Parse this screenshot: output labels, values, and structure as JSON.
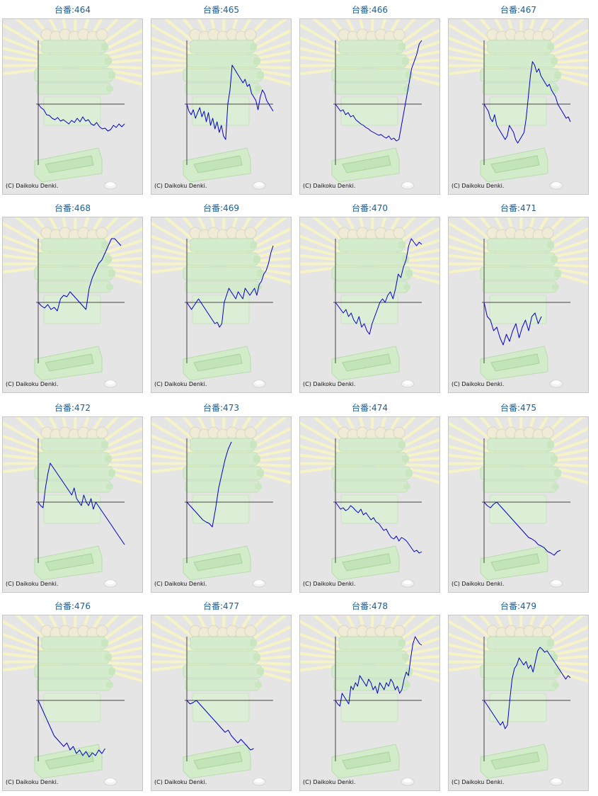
{
  "credit": "(C) Daikoku Denki.",
  "colors": {
    "title": "#1a5d9a",
    "line": "#0000cc",
    "axis": "#444444",
    "background": "#e5e5e5"
  },
  "chart_data": [
    {
      "type": "line",
      "title": "台番:464",
      "y": [
        0,
        -5,
        -8,
        -15,
        -16,
        -20,
        -22,
        -19,
        -24,
        -22,
        -25,
        -28,
        -23,
        -26,
        -20,
        -25,
        -18,
        -24,
        -22,
        -28,
        -30,
        -26,
        -32,
        -35,
        -34,
        -38,
        -36,
        -30,
        -33,
        -28,
        -32,
        -28
      ]
    },
    {
      "type": "line",
      "title": "台番:465",
      "y": [
        0,
        -10,
        -15,
        -8,
        -20,
        -12,
        -5,
        -18,
        -10,
        -25,
        -12,
        -30,
        -20,
        -35,
        -25,
        -40,
        -30,
        -45,
        -50,
        0,
        20,
        55,
        50,
        45,
        40,
        35,
        30,
        35,
        25,
        28,
        15,
        10,
        5,
        -8,
        10,
        20,
        15,
        5,
        0,
        -5,
        -10
      ]
    },
    {
      "type": "line",
      "title": "台番:466",
      "y": [
        0,
        -5,
        -10,
        -8,
        -15,
        -12,
        -18,
        -16,
        -22,
        -25,
        -28,
        -30,
        -33,
        -35,
        -38,
        -40,
        -42,
        -44,
        -43,
        -46,
        -48,
        -45,
        -50,
        -48,
        -52,
        -50,
        -30,
        -10,
        10,
        30,
        50,
        60,
        70,
        85,
        90
      ]
    },
    {
      "type": "line",
      "title": "台番:467",
      "y": [
        0,
        -5,
        -10,
        -20,
        -25,
        -15,
        -30,
        -35,
        -40,
        -45,
        -50,
        -45,
        -30,
        -35,
        -40,
        -50,
        -55,
        -50,
        -45,
        -40,
        -20,
        10,
        40,
        60,
        55,
        45,
        50,
        40,
        35,
        30,
        25,
        28,
        20,
        15,
        10,
        0,
        -5,
        -10,
        -15,
        -20,
        -18,
        -25
      ]
    },
    {
      "type": "line",
      "title": "台番:468",
      "y": [
        0,
        -5,
        -8,
        -3,
        -10,
        -7,
        -12,
        5,
        10,
        8,
        15,
        10,
        5,
        0,
        -5,
        -10,
        20,
        35,
        45,
        55,
        60,
        70,
        80,
        90,
        95,
        85,
        80
      ]
    },
    {
      "type": "line",
      "title": "台番:469",
      "y": [
        0,
        -5,
        -10,
        -5,
        0,
        5,
        0,
        -5,
        -10,
        -15,
        -20,
        -25,
        -30,
        -28,
        -35,
        -30,
        0,
        10,
        20,
        15,
        10,
        5,
        15,
        10,
        5,
        20,
        15,
        10,
        15,
        20,
        10,
        25,
        30,
        40,
        45,
        55,
        70,
        80
      ]
    },
    {
      "type": "line",
      "title": "台番:470",
      "y": [
        0,
        -5,
        -10,
        -15,
        -10,
        -20,
        -15,
        -25,
        -30,
        -20,
        -35,
        -30,
        -40,
        -45,
        -30,
        -20,
        -10,
        0,
        5,
        0,
        10,
        15,
        5,
        20,
        40,
        35,
        50,
        60,
        80,
        90,
        85,
        80,
        85,
        82
      ]
    },
    {
      "type": "line",
      "title": "台番:471",
      "y": [
        0,
        -20,
        -25,
        -40,
        -35,
        -50,
        -60,
        -45,
        -55,
        -40,
        -30,
        -50,
        -35,
        -25,
        -40,
        -20,
        -15,
        -30,
        -20
      ]
    },
    {
      "type": "line",
      "title": "台番:472",
      "y": [
        0,
        -5,
        -8,
        20,
        40,
        55,
        50,
        45,
        40,
        35,
        30,
        25,
        20,
        15,
        10,
        20,
        5,
        0,
        -5,
        10,
        0,
        -5,
        5,
        -10,
        0,
        -5,
        -10,
        -15,
        -20,
        -25,
        -30,
        -35,
        -40,
        -45,
        -50,
        -55,
        -60
      ]
    },
    {
      "type": "line",
      "title": "台番:473",
      "y": [
        0,
        -5,
        -10,
        -15,
        -20,
        -25,
        -28,
        -30,
        -35,
        -10,
        20,
        40,
        60,
        75,
        85
      ]
    },
    {
      "type": "line",
      "title": "台番:474",
      "y": [
        0,
        -5,
        -10,
        -8,
        -12,
        -10,
        -5,
        -8,
        -12,
        -15,
        -10,
        -18,
        -15,
        -20,
        -25,
        -22,
        -28,
        -30,
        -35,
        -40,
        -38,
        -45,
        -50,
        -52,
        -48,
        -55,
        -50,
        -52,
        -55,
        -60,
        -65,
        -70,
        -68,
        -72,
        -70
      ]
    },
    {
      "type": "line",
      "title": "台番:475",
      "y": [
        0,
        -5,
        -8,
        -3,
        0,
        -5,
        -10,
        -15,
        -20,
        -25,
        -30,
        -35,
        -40,
        -45,
        -50,
        -52,
        -55,
        -60,
        -62,
        -65,
        -70,
        -72,
        -75,
        -70,
        -68
      ]
    },
    {
      "type": "line",
      "title": "台番:476",
      "y": [
        0,
        -10,
        -20,
        -30,
        -40,
        -50,
        -55,
        -60,
        -65,
        -60,
        -70,
        -65,
        -75,
        -70,
        -78,
        -72,
        -80,
        -74,
        -78,
        -70,
        -75,
        -68
      ]
    },
    {
      "type": "line",
      "title": "台番:477",
      "y": [
        0,
        -5,
        -3,
        0,
        -5,
        -10,
        -15,
        -20,
        -25,
        -30,
        -35,
        -40,
        -45,
        -42,
        -50,
        -55,
        -60,
        -55,
        -60,
        -65,
        -70,
        -68
      ]
    },
    {
      "type": "line",
      "title": "台番:478",
      "y": [
        0,
        -5,
        -8,
        10,
        5,
        0,
        -5,
        20,
        15,
        25,
        20,
        35,
        30,
        25,
        20,
        30,
        25,
        15,
        20,
        10,
        25,
        20,
        15,
        25,
        20,
        30,
        25,
        15,
        20,
        10,
        15,
        30,
        40,
        35,
        60,
        80,
        90,
        85,
        80,
        78
      ]
    },
    {
      "type": "line",
      "title": "台番:479",
      "y": [
        0,
        -5,
        -10,
        -15,
        -20,
        -25,
        -30,
        -35,
        -30,
        -40,
        -35,
        0,
        30,
        45,
        50,
        60,
        55,
        50,
        55,
        45,
        50,
        40,
        55,
        70,
        75,
        72,
        68,
        70,
        65,
        60,
        55,
        50,
        45,
        40,
        35,
        30,
        35,
        32
      ]
    }
  ]
}
